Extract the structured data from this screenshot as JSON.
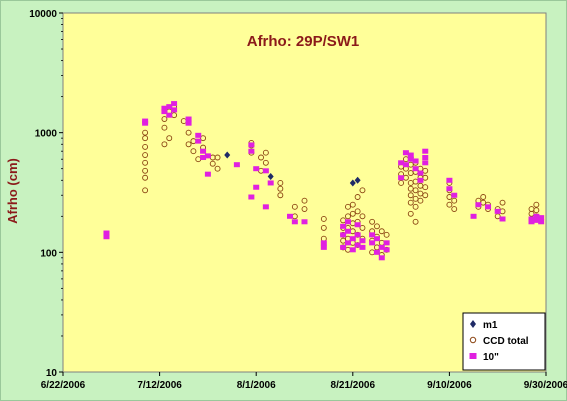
{
  "chart_data": {
    "type": "scatter",
    "title": "Afrho: 29P/SW1",
    "xlabel": "",
    "ylabel": "Afrho (cm)",
    "y_scale": "log",
    "ylim": [
      10,
      10000
    ],
    "xlim": [
      "2006-06-22",
      "2006-09-30"
    ],
    "x_ticks": [
      "6/22/2006",
      "7/12/2006",
      "8/1/2006",
      "8/21/2006",
      "9/10/2006",
      "9/30/2006"
    ],
    "y_ticks": [
      "10",
      "100",
      "1000",
      "10000"
    ],
    "grid": false,
    "legend_position": "bottom-right",
    "colors": {
      "outer_background": "#c8f2c0",
      "plot_background": "#ffff99",
      "title": "#8b1a1a",
      "m1": "#1f2a66",
      "ccd_total": "#8b4513",
      "ten_inch": "#e020e0"
    },
    "series": [
      {
        "name": "m1",
        "marker": "diamond",
        "points": [
          [
            "2006-07-26",
            650
          ],
          [
            "2006-08-04",
            430
          ],
          [
            "2006-08-21",
            380
          ],
          [
            "2006-08-22",
            400
          ]
        ]
      },
      {
        "name": "CCD total",
        "marker": "open-circle",
        "points": [
          [
            "2006-07-09",
            330
          ],
          [
            "2006-07-09",
            420
          ],
          [
            "2006-07-09",
            480
          ],
          [
            "2006-07-09",
            560
          ],
          [
            "2006-07-09",
            650
          ],
          [
            "2006-07-09",
            760
          ],
          [
            "2006-07-09",
            900
          ],
          [
            "2006-07-09",
            1000
          ],
          [
            "2006-07-13",
            800
          ],
          [
            "2006-07-13",
            1100
          ],
          [
            "2006-07-13",
            1300
          ],
          [
            "2006-07-14",
            900
          ],
          [
            "2006-07-14",
            1500
          ],
          [
            "2006-07-15",
            1400
          ],
          [
            "2006-07-15",
            1650
          ],
          [
            "2006-07-17",
            1250
          ],
          [
            "2006-07-18",
            800
          ],
          [
            "2006-07-18",
            1000
          ],
          [
            "2006-07-19",
            700
          ],
          [
            "2006-07-19",
            850
          ],
          [
            "2006-07-20",
            600
          ],
          [
            "2006-07-21",
            900
          ],
          [
            "2006-07-21",
            750
          ],
          [
            "2006-07-23",
            550
          ],
          [
            "2006-07-23",
            620
          ],
          [
            "2006-07-24",
            500
          ],
          [
            "2006-07-24",
            620
          ],
          [
            "2006-07-31",
            680
          ],
          [
            "2006-07-31",
            780
          ],
          [
            "2006-07-31",
            820
          ],
          [
            "2006-08-02",
            480
          ],
          [
            "2006-08-02",
            620
          ],
          [
            "2006-08-03",
            560
          ],
          [
            "2006-08-03",
            680
          ],
          [
            "2006-08-06",
            300
          ],
          [
            "2006-08-06",
            340
          ],
          [
            "2006-08-06",
            380
          ],
          [
            "2006-08-09",
            200
          ],
          [
            "2006-08-09",
            240
          ],
          [
            "2006-08-11",
            230
          ],
          [
            "2006-08-11",
            270
          ],
          [
            "2006-08-15",
            130
          ],
          [
            "2006-08-15",
            160
          ],
          [
            "2006-08-15",
            190
          ],
          [
            "2006-08-19",
            110
          ],
          [
            "2006-08-19",
            125
          ],
          [
            "2006-08-19",
            140
          ],
          [
            "2006-08-19",
            160
          ],
          [
            "2006-08-19",
            185
          ],
          [
            "2006-08-20",
            105
          ],
          [
            "2006-08-20",
            130
          ],
          [
            "2006-08-20",
            160
          ],
          [
            "2006-08-20",
            200
          ],
          [
            "2006-08-20",
            240
          ],
          [
            "2006-08-21",
            120
          ],
          [
            "2006-08-21",
            150
          ],
          [
            "2006-08-21",
            175
          ],
          [
            "2006-08-21",
            210
          ],
          [
            "2006-08-21",
            250
          ],
          [
            "2006-08-22",
            115
          ],
          [
            "2006-08-22",
            140
          ],
          [
            "2006-08-22",
            180
          ],
          [
            "2006-08-22",
            220
          ],
          [
            "2006-08-22",
            290
          ],
          [
            "2006-08-23",
            130
          ],
          [
            "2006-08-23",
            160
          ],
          [
            "2006-08-23",
            200
          ],
          [
            "2006-08-23",
            330
          ],
          [
            "2006-08-25",
            100
          ],
          [
            "2006-08-25",
            125
          ],
          [
            "2006-08-25",
            150
          ],
          [
            "2006-08-25",
            180
          ],
          [
            "2006-08-26",
            110
          ],
          [
            "2006-08-26",
            135
          ],
          [
            "2006-08-26",
            165
          ],
          [
            "2006-08-27",
            95
          ],
          [
            "2006-08-27",
            120
          ],
          [
            "2006-08-27",
            150
          ],
          [
            "2006-08-28",
            105
          ],
          [
            "2006-08-28",
            140
          ],
          [
            "2006-08-31",
            380
          ],
          [
            "2006-08-31",
            450
          ],
          [
            "2006-08-31",
            520
          ],
          [
            "2006-09-01",
            420
          ],
          [
            "2006-09-01",
            500
          ],
          [
            "2006-09-01",
            600
          ],
          [
            "2006-09-02",
            210
          ],
          [
            "2006-09-02",
            260
          ],
          [
            "2006-09-02",
            300
          ],
          [
            "2006-09-02",
            340
          ],
          [
            "2006-09-02",
            380
          ],
          [
            "2006-09-02",
            460
          ],
          [
            "2006-09-02",
            540
          ],
          [
            "2006-09-02",
            620
          ],
          [
            "2006-09-03",
            180
          ],
          [
            "2006-09-03",
            240
          ],
          [
            "2006-09-03",
            280
          ],
          [
            "2006-09-03",
            330
          ],
          [
            "2006-09-03",
            390
          ],
          [
            "2006-09-03",
            470
          ],
          [
            "2006-09-03",
            560
          ],
          [
            "2006-09-04",
            270
          ],
          [
            "2006-09-04",
            310
          ],
          [
            "2006-09-04",
            360
          ],
          [
            "2006-09-04",
            420
          ],
          [
            "2006-09-04",
            500
          ],
          [
            "2006-09-05",
            300
          ],
          [
            "2006-09-05",
            350
          ],
          [
            "2006-09-05",
            420
          ],
          [
            "2006-09-05",
            480
          ],
          [
            "2006-09-10",
            250
          ],
          [
            "2006-09-10",
            290
          ],
          [
            "2006-09-10",
            330
          ],
          [
            "2006-09-10",
            380
          ],
          [
            "2006-09-11",
            230
          ],
          [
            "2006-09-11",
            270
          ],
          [
            "2006-09-16",
            240
          ],
          [
            "2006-09-16",
            270
          ],
          [
            "2006-09-17",
            260
          ],
          [
            "2006-09-17",
            290
          ],
          [
            "2006-09-18",
            230
          ],
          [
            "2006-09-18",
            250
          ],
          [
            "2006-09-20",
            200
          ],
          [
            "2006-09-20",
            230
          ],
          [
            "2006-09-21",
            220
          ],
          [
            "2006-09-21",
            260
          ],
          [
            "2006-09-27",
            190
          ],
          [
            "2006-09-27",
            210
          ],
          [
            "2006-09-27",
            230
          ],
          [
            "2006-09-28",
            200
          ],
          [
            "2006-09-28",
            225
          ],
          [
            "2006-09-28",
            250
          ]
        ]
      },
      {
        "name": "10\"",
        "marker": "square",
        "points": [
          [
            "2006-07-01",
            135
          ],
          [
            "2006-07-01",
            145
          ],
          [
            "2006-07-09",
            1200
          ],
          [
            "2006-07-09",
            1250
          ],
          [
            "2006-07-13",
            1500
          ],
          [
            "2006-07-13",
            1600
          ],
          [
            "2006-07-14",
            1400
          ],
          [
            "2006-07-14",
            1650
          ],
          [
            "2006-07-15",
            1550
          ],
          [
            "2006-07-15",
            1750
          ],
          [
            "2006-07-18",
            1300
          ],
          [
            "2006-07-18",
            1200
          ],
          [
            "2006-07-20",
            950
          ],
          [
            "2006-07-20",
            850
          ],
          [
            "2006-07-21",
            700
          ],
          [
            "2006-07-21",
            620
          ],
          [
            "2006-07-22",
            640
          ],
          [
            "2006-07-22",
            450
          ],
          [
            "2006-07-28",
            540
          ],
          [
            "2006-07-31",
            790
          ],
          [
            "2006-07-31",
            700
          ],
          [
            "2006-07-31",
            290
          ],
          [
            "2006-08-01",
            500
          ],
          [
            "2006-08-01",
            350
          ],
          [
            "2006-08-03",
            480
          ],
          [
            "2006-08-03",
            240
          ],
          [
            "2006-08-04",
            380
          ],
          [
            "2006-08-08",
            200
          ],
          [
            "2006-08-09",
            180
          ],
          [
            "2006-08-11",
            180
          ],
          [
            "2006-08-15",
            120
          ],
          [
            "2006-08-15",
            110
          ],
          [
            "2006-08-19",
            140
          ],
          [
            "2006-08-19",
            165
          ],
          [
            "2006-08-19",
            110
          ],
          [
            "2006-08-20",
            120
          ],
          [
            "2006-08-20",
            150
          ],
          [
            "2006-08-20",
            180
          ],
          [
            "2006-08-21",
            105
          ],
          [
            "2006-08-21",
            130
          ],
          [
            "2006-08-22",
            115
          ],
          [
            "2006-08-22",
            140
          ],
          [
            "2006-08-22",
            170
          ],
          [
            "2006-08-23",
            125
          ],
          [
            "2006-08-23",
            110
          ],
          [
            "2006-08-25",
            120
          ],
          [
            "2006-08-25",
            140
          ],
          [
            "2006-08-26",
            100
          ],
          [
            "2006-08-26",
            130
          ],
          [
            "2006-08-27",
            110
          ],
          [
            "2006-08-27",
            90
          ],
          [
            "2006-08-28",
            105
          ],
          [
            "2006-08-28",
            120
          ],
          [
            "2006-08-31",
            560
          ],
          [
            "2006-08-31",
            420
          ],
          [
            "2006-09-01",
            680
          ],
          [
            "2006-09-01",
            540
          ],
          [
            "2006-09-02",
            650
          ],
          [
            "2006-09-02",
            600
          ],
          [
            "2006-09-03",
            580
          ],
          [
            "2006-09-03",
            500
          ],
          [
            "2006-09-04",
            460
          ],
          [
            "2006-09-04",
            400
          ],
          [
            "2006-09-05",
            700
          ],
          [
            "2006-09-05",
            620
          ],
          [
            "2006-09-05",
            560
          ],
          [
            "2006-09-10",
            400
          ],
          [
            "2006-09-10",
            340
          ],
          [
            "2006-09-11",
            300
          ],
          [
            "2006-09-15",
            200
          ],
          [
            "2006-09-16",
            250
          ],
          [
            "2006-09-18",
            240
          ],
          [
            "2006-09-20",
            220
          ],
          [
            "2006-09-21",
            190
          ],
          [
            "2006-09-27",
            180
          ],
          [
            "2006-09-27",
            190
          ],
          [
            "2006-09-28",
            200
          ],
          [
            "2006-09-28",
            185
          ],
          [
            "2006-09-29",
            195
          ],
          [
            "2006-09-29",
            180
          ]
        ]
      }
    ]
  }
}
